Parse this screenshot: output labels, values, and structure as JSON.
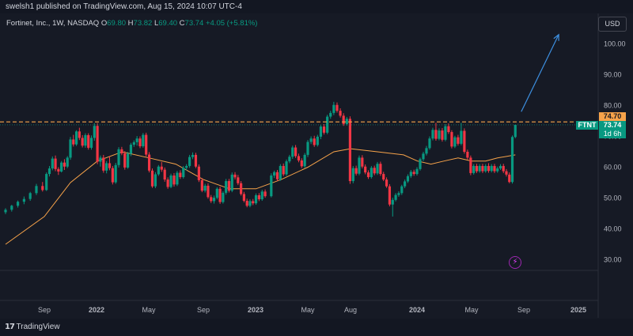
{
  "header": {
    "published_text": "swelsh1 published on TradingView.com, Aug 15, 2024 10:07 UTC-4"
  },
  "legend": {
    "symbol_text": "Fortinet, Inc., 1W, NASDAQ",
    "o_label": "O",
    "o_value": "69.80",
    "h_label": "H",
    "h_value": "73.82",
    "l_label": "L",
    "l_value": "69.40",
    "c_label": "C",
    "c_value": "73.74",
    "change": "+4.05 (+5.81%)"
  },
  "currency_button": "USD",
  "price_tags": {
    "line_level": "74.70",
    "ticker": "FTNT",
    "last_price": "73.74",
    "countdown": "1d 6h"
  },
  "footer": {
    "brand": "TradingView"
  },
  "colors": {
    "up": "#089981",
    "down": "#f23645",
    "ma": "#f7a34a",
    "dashed": "#f7a34a",
    "arrow": "#3d8fe0",
    "background": "#161a25"
  },
  "chart_data": {
    "type": "candlestick",
    "y_axis_ticks": [
      30,
      40,
      50,
      60,
      70,
      80,
      90,
      100
    ],
    "ylim": [
      26,
      106
    ],
    "x_ticks": [
      "Sep",
      "2022",
      "May",
      "Sep",
      "2023",
      "May",
      "Aug",
      "2024",
      "May",
      "Sep",
      "2025"
    ],
    "x_tick_dates": [
      "2021-09-01",
      "2022-01-01",
      "2022-05-01",
      "2022-09-01",
      "2023-01-01",
      "2023-05-01",
      "2023-08-01",
      "2024-01-01",
      "2024-05-01",
      "2024-09-01",
      "2025-01-01"
    ],
    "horizontal_level": 74.7,
    "ma_series": [
      [
        "2021-07-19",
        35
      ],
      [
        "2021-09-01",
        44
      ],
      [
        "2021-11-01",
        55
      ],
      [
        "2022-01-03",
        62
      ],
      [
        "2022-03-01",
        65
      ],
      [
        "2022-05-02",
        63
      ],
      [
        "2022-07-01",
        61
      ],
      [
        "2022-09-01",
        56
      ],
      [
        "2022-11-01",
        53
      ],
      [
        "2023-01-02",
        53
      ],
      [
        "2023-03-01",
        56
      ],
      [
        "2023-05-01",
        60
      ],
      [
        "2023-06-26",
        65
      ],
      [
        "2023-08-01",
        66
      ],
      [
        "2023-10-02",
        65
      ],
      [
        "2023-12-01",
        64
      ],
      [
        "2024-01-02",
        62
      ],
      [
        "2024-02-01",
        61
      ],
      [
        "2024-03-01",
        62
      ],
      [
        "2024-04-01",
        63
      ],
      [
        "2024-05-01",
        62
      ],
      [
        "2024-06-03",
        62
      ],
      [
        "2024-07-01",
        63
      ],
      [
        "2024-08-12",
        64
      ]
    ],
    "arrow": {
      "from": [
        "2024-08-26",
        78
      ],
      "to": [
        "2024-11-18",
        103
      ]
    },
    "candles": [
      [
        "2021-07-19",
        45.4,
        46.7,
        44.8,
        46.2
      ],
      [
        "2021-07-26",
        46.2,
        47.8,
        45.6,
        47.5
      ],
      [
        "2021-08-02",
        47.5,
        49.2,
        46.9,
        48.8
      ],
      [
        "2021-08-09",
        48.8,
        50.5,
        48.0,
        49.7
      ],
      [
        "2021-08-16",
        49.7,
        52.0,
        49.1,
        51.6
      ],
      [
        "2021-08-23",
        51.6,
        54.6,
        51.0,
        53.9
      ],
      [
        "2021-08-30",
        53.9,
        55.2,
        52.1,
        52.6
      ],
      [
        "2021-09-06",
        52.6,
        58.3,
        52.3,
        57.8
      ],
      [
        "2021-09-13",
        57.8,
        60.4,
        57.0,
        59.6
      ],
      [
        "2021-09-20",
        59.6,
        63.5,
        59.0,
        62.8
      ],
      [
        "2021-09-27",
        62.8,
        63.8,
        58.7,
        59.4
      ],
      [
        "2021-10-04",
        59.4,
        60.0,
        57.5,
        58.6
      ],
      [
        "2021-10-11",
        58.6,
        62.0,
        58.3,
        61.5
      ],
      [
        "2021-10-18",
        61.5,
        62.6,
        59.1,
        60.2
      ],
      [
        "2021-10-25",
        60.2,
        63.6,
        59.7,
        63.1
      ],
      [
        "2021-11-01",
        63.1,
        69.8,
        62.4,
        69.0
      ],
      [
        "2021-11-08",
        69.0,
        70.5,
        66.7,
        67.4
      ],
      [
        "2021-11-15",
        67.4,
        72.0,
        66.9,
        71.6
      ],
      [
        "2021-11-22",
        71.6,
        72.8,
        68.8,
        69.5
      ],
      [
        "2021-11-29",
        69.5,
        70.4,
        66.4,
        67.0
      ],
      [
        "2021-12-06",
        67.0,
        71.0,
        66.3,
        70.4
      ],
      [
        "2021-12-13",
        70.4,
        71.0,
        65.7,
        66.3
      ],
      [
        "2021-12-20",
        66.3,
        70.3,
        65.7,
        69.5
      ],
      [
        "2021-12-27",
        69.5,
        74.3,
        68.6,
        73.4
      ],
      [
        "2022-01-03",
        73.4,
        74.3,
        61.0,
        61.8
      ],
      [
        "2022-01-10",
        61.8,
        63.8,
        60.2,
        63.1
      ],
      [
        "2022-01-17",
        63.1,
        64.0,
        58.2,
        58.9
      ],
      [
        "2022-01-24",
        58.9,
        62.0,
        58.0,
        61.3
      ],
      [
        "2022-01-31",
        61.3,
        63.5,
        59.0,
        59.7
      ],
      [
        "2022-02-07",
        59.7,
        60.4,
        54.4,
        55.1
      ],
      [
        "2022-02-14",
        55.1,
        61.4,
        54.6,
        60.7
      ],
      [
        "2022-02-21",
        60.7,
        66.5,
        59.9,
        65.8
      ],
      [
        "2022-02-28",
        65.8,
        66.6,
        63.9,
        64.5
      ],
      [
        "2022-03-07",
        64.5,
        65.2,
        59.2,
        59.9
      ],
      [
        "2022-03-14",
        59.9,
        65.0,
        59.5,
        64.4
      ],
      [
        "2022-03-21",
        64.4,
        67.9,
        63.6,
        67.3
      ],
      [
        "2022-03-28",
        67.3,
        68.7,
        66.6,
        68.1
      ],
      [
        "2022-04-04",
        68.1,
        70.1,
        67.0,
        69.3
      ],
      [
        "2022-04-11",
        69.3,
        70.0,
        66.2,
        66.8
      ],
      [
        "2022-04-18",
        66.8,
        71.1,
        66.3,
        70.5
      ],
      [
        "2022-04-25",
        70.5,
        71.2,
        63.5,
        64.1
      ],
      [
        "2022-05-02",
        64.1,
        64.9,
        58.3,
        58.9
      ],
      [
        "2022-05-09",
        58.9,
        59.6,
        53.3,
        53.8
      ],
      [
        "2022-05-16",
        53.8,
        58.4,
        53.2,
        57.7
      ],
      [
        "2022-05-23",
        57.7,
        60.7,
        57.2,
        60.2
      ],
      [
        "2022-05-30",
        60.2,
        61.7,
        58.5,
        59.2
      ],
      [
        "2022-06-06",
        59.2,
        59.9,
        55.3,
        56.0
      ],
      [
        "2022-06-13",
        56.0,
        56.7,
        53.0,
        53.6
      ],
      [
        "2022-06-20",
        53.6,
        57.9,
        53.2,
        57.3
      ],
      [
        "2022-06-27",
        57.3,
        58.1,
        53.7,
        54.4
      ],
      [
        "2022-07-04",
        54.4,
        58.8,
        53.9,
        58.2
      ],
      [
        "2022-07-11",
        58.2,
        59.0,
        56.2,
        56.8
      ],
      [
        "2022-07-18",
        56.8,
        60.4,
        56.3,
        59.8
      ],
      [
        "2022-07-25",
        59.8,
        61.0,
        59.0,
        60.4
      ],
      [
        "2022-08-01",
        60.4,
        64.0,
        59.8,
        63.3
      ],
      [
        "2022-08-08",
        63.3,
        64.8,
        62.6,
        64.0
      ],
      [
        "2022-08-15",
        64.0,
        64.7,
        59.7,
        60.2
      ],
      [
        "2022-08-22",
        60.2,
        60.9,
        55.2,
        55.8
      ],
      [
        "2022-08-29",
        55.8,
        56.5,
        51.9,
        52.4
      ],
      [
        "2022-09-05",
        52.4,
        54.6,
        51.8,
        54.0
      ],
      [
        "2022-09-12",
        54.0,
        54.8,
        49.8,
        50.3
      ],
      [
        "2022-09-19",
        50.3,
        51.0,
        48.4,
        49.0
      ],
      [
        "2022-09-26",
        49.0,
        50.8,
        48.2,
        50.1
      ],
      [
        "2022-10-03",
        50.1,
        53.5,
        49.6,
        53.0
      ],
      [
        "2022-10-10",
        53.0,
        53.7,
        48.1,
        48.7
      ],
      [
        "2022-10-17",
        48.7,
        52.2,
        48.2,
        51.7
      ],
      [
        "2022-10-24",
        51.7,
        56.2,
        51.1,
        55.5
      ],
      [
        "2022-10-31",
        55.5,
        56.2,
        51.8,
        52.4
      ],
      [
        "2022-11-07",
        52.4,
        58.3,
        51.9,
        57.6
      ],
      [
        "2022-11-14",
        57.6,
        58.4,
        56.0,
        56.7
      ],
      [
        "2022-11-21",
        56.7,
        57.5,
        54.2,
        54.8
      ],
      [
        "2022-11-28",
        54.8,
        55.5,
        50.8,
        51.3
      ],
      [
        "2022-12-05",
        51.3,
        52.0,
        48.6,
        49.1
      ],
      [
        "2022-12-12",
        49.1,
        49.8,
        47.0,
        47.5
      ],
      [
        "2022-12-19",
        47.5,
        49.6,
        47.0,
        49.0
      ],
      [
        "2022-12-26",
        49.0,
        49.7,
        47.7,
        48.3
      ],
      [
        "2023-01-02",
        48.3,
        51.5,
        47.8,
        50.9
      ],
      [
        "2023-01-09",
        50.9,
        51.6,
        49.0,
        49.6
      ],
      [
        "2023-01-16",
        49.6,
        52.7,
        49.1,
        52.1
      ],
      [
        "2023-01-23",
        52.1,
        52.8,
        50.1,
        50.6
      ],
      [
        "2023-02-06",
        50.6,
        58.0,
        50.2,
        57.3
      ],
      [
        "2023-02-13",
        57.3,
        58.9,
        56.5,
        58.4
      ],
      [
        "2023-02-20",
        58.4,
        59.1,
        55.5,
        56.1
      ],
      [
        "2023-02-27",
        56.1,
        61.0,
        55.6,
        60.4
      ],
      [
        "2023-03-06",
        60.4,
        61.2,
        57.1,
        57.7
      ],
      [
        "2023-03-13",
        57.7,
        62.5,
        57.2,
        61.9
      ],
      [
        "2023-03-20",
        61.9,
        64.0,
        61.3,
        63.4
      ],
      [
        "2023-03-27",
        63.4,
        67.0,
        62.7,
        66.4
      ],
      [
        "2023-04-03",
        66.4,
        67.2,
        63.0,
        63.6
      ],
      [
        "2023-04-10",
        63.6,
        64.4,
        61.6,
        62.2
      ],
      [
        "2023-04-17",
        62.2,
        62.9,
        59.7,
        60.3
      ],
      [
        "2023-04-24",
        60.3,
        64.6,
        59.8,
        64.0
      ],
      [
        "2023-05-01",
        64.0,
        68.8,
        63.3,
        68.2
      ],
      [
        "2023-05-08",
        68.2,
        70.0,
        67.5,
        69.3
      ],
      [
        "2023-05-15",
        69.3,
        70.2,
        66.6,
        67.2
      ],
      [
        "2023-05-22",
        67.2,
        70.5,
        66.7,
        69.9
      ],
      [
        "2023-05-29",
        69.9,
        73.8,
        69.1,
        73.2
      ],
      [
        "2023-06-05",
        73.2,
        74.0,
        70.6,
        71.2
      ],
      [
        "2023-06-12",
        71.2,
        77.0,
        70.7,
        76.4
      ],
      [
        "2023-06-19",
        76.4,
        78.3,
        75.7,
        77.6
      ],
      [
        "2023-06-26",
        77.6,
        81.2,
        76.9,
        80.2
      ],
      [
        "2023-07-03",
        80.2,
        81.0,
        77.7,
        78.3
      ],
      [
        "2023-07-10",
        78.3,
        79.1,
        76.1,
        76.7
      ],
      [
        "2023-07-17",
        76.7,
        77.5,
        73.4,
        74.0
      ],
      [
        "2023-07-24",
        74.0,
        76.3,
        73.5,
        75.7
      ],
      [
        "2023-07-31",
        75.7,
        76.5,
        54.6,
        55.5
      ],
      [
        "2023-08-07",
        55.5,
        60.4,
        54.8,
        59.7
      ],
      [
        "2023-08-14",
        59.7,
        60.5,
        57.3,
        57.9
      ],
      [
        "2023-08-21",
        57.9,
        63.8,
        57.4,
        63.1
      ],
      [
        "2023-08-28",
        63.1,
        63.9,
        59.6,
        60.2
      ],
      [
        "2023-09-04",
        60.2,
        60.9,
        57.7,
        58.3
      ],
      [
        "2023-09-11",
        58.3,
        59.0,
        56.2,
        56.8
      ],
      [
        "2023-09-18",
        56.8,
        60.4,
        56.3,
        59.8
      ],
      [
        "2023-09-25",
        59.8,
        60.5,
        57.4,
        58.0
      ],
      [
        "2023-10-02",
        58.0,
        61.7,
        57.5,
        61.1
      ],
      [
        "2023-10-09",
        61.1,
        61.8,
        57.2,
        57.8
      ],
      [
        "2023-10-16",
        57.8,
        58.5,
        55.5,
        56.0
      ],
      [
        "2023-10-23",
        56.0,
        56.7,
        53.3,
        53.8
      ],
      [
        "2023-10-30",
        53.8,
        54.5,
        47.3,
        47.9
      ],
      [
        "2023-11-06",
        47.9,
        50.1,
        44.0,
        49.4
      ],
      [
        "2023-11-13",
        49.4,
        51.6,
        48.9,
        51.0
      ],
      [
        "2023-11-20",
        51.0,
        52.2,
        50.4,
        51.6
      ],
      [
        "2023-11-27",
        51.6,
        54.3,
        51.0,
        53.8
      ],
      [
        "2023-12-04",
        53.8,
        56.0,
        53.2,
        55.4
      ],
      [
        "2023-12-11",
        55.4,
        57.7,
        54.9,
        57.1
      ],
      [
        "2023-12-18",
        57.1,
        59.1,
        56.5,
        58.5
      ],
      [
        "2023-12-25",
        58.5,
        59.2,
        57.2,
        57.8
      ],
      [
        "2024-01-01",
        57.8,
        60.0,
        57.3,
        59.4
      ],
      [
        "2024-01-08",
        59.4,
        63.1,
        58.9,
        62.6
      ],
      [
        "2024-01-15",
        62.6,
        65.0,
        62.0,
        64.4
      ],
      [
        "2024-01-22",
        64.4,
        66.9,
        63.8,
        66.2
      ],
      [
        "2024-01-29",
        66.2,
        70.0,
        65.7,
        69.3
      ],
      [
        "2024-02-05",
        69.3,
        72.8,
        68.7,
        72.1
      ],
      [
        "2024-02-12",
        72.1,
        74.4,
        68.6,
        69.2
      ],
      [
        "2024-02-19",
        69.2,
        72.6,
        68.7,
        71.9
      ],
      [
        "2024-02-26",
        71.9,
        72.7,
        68.3,
        68.9
      ],
      [
        "2024-03-04",
        68.9,
        74.0,
        68.4,
        73.3
      ],
      [
        "2024-03-11",
        73.3,
        74.2,
        70.8,
        71.4
      ],
      [
        "2024-03-18",
        71.4,
        72.0,
        66.1,
        66.7
      ],
      [
        "2024-03-25",
        66.7,
        70.2,
        66.2,
        69.7
      ],
      [
        "2024-04-01",
        69.7,
        70.5,
        67.0,
        67.6
      ],
      [
        "2024-04-08",
        67.6,
        74.4,
        67.1,
        71.8
      ],
      [
        "2024-04-15",
        71.8,
        72.6,
        64.4,
        65.0
      ],
      [
        "2024-04-22",
        65.0,
        65.7,
        62.5,
        63.1
      ],
      [
        "2024-04-29",
        63.1,
        63.8,
        57.4,
        58.1
      ],
      [
        "2024-05-06",
        58.1,
        61.0,
        57.6,
        60.4
      ],
      [
        "2024-05-13",
        60.4,
        61.1,
        58.1,
        58.7
      ],
      [
        "2024-05-20",
        58.7,
        61.0,
        58.2,
        60.4
      ],
      [
        "2024-05-27",
        60.4,
        61.1,
        58.1,
        58.7
      ],
      [
        "2024-06-03",
        58.7,
        61.0,
        58.2,
        60.4
      ],
      [
        "2024-06-10",
        60.4,
        61.3,
        58.2,
        58.8
      ],
      [
        "2024-06-17",
        58.8,
        61.0,
        58.3,
        60.4
      ],
      [
        "2024-06-24",
        60.4,
        61.1,
        58.1,
        58.7
      ],
      [
        "2024-07-01",
        58.7,
        60.2,
        58.2,
        59.6
      ],
      [
        "2024-07-08",
        59.6,
        61.0,
        59.1,
        60.4
      ],
      [
        "2024-07-15",
        60.4,
        61.1,
        58.1,
        58.7
      ],
      [
        "2024-07-22",
        58.7,
        59.4,
        57.0,
        57.6
      ],
      [
        "2024-07-29",
        57.6,
        58.3,
        54.8,
        55.2
      ],
      [
        "2024-08-05",
        55.2,
        70.3,
        54.7,
        69.8
      ],
      [
        "2024-08-12",
        69.8,
        73.8,
        69.4,
        73.74
      ]
    ]
  }
}
